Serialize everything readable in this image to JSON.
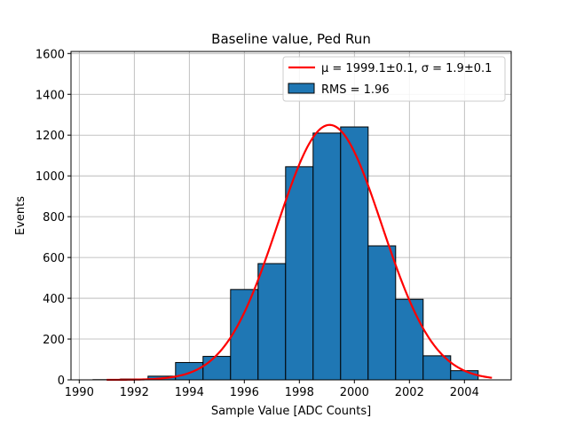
{
  "chart_data": {
    "type": "bar",
    "title": "Baseline value, Ped Run",
    "xlabel": "Sample Value [ADC Counts]",
    "ylabel": "Events",
    "xlim": [
      1989.7,
      2005.7
    ],
    "ylim": [
      0,
      1610
    ],
    "xticks": [
      1990,
      1992,
      1994,
      1996,
      1998,
      2000,
      2002,
      2004
    ],
    "yticks": [
      0,
      200,
      400,
      600,
      800,
      1000,
      1200,
      1400,
      1600
    ],
    "grid": true,
    "legend_position": "upper-right",
    "histogram": {
      "name": "RMS = 1.96",
      "color": "#1f77b4",
      "bins": [
        {
          "x0": 1990.5,
          "x1": 1991.5,
          "count": 1
        },
        {
          "x0": 1991.5,
          "x1": 1992.5,
          "count": 4
        },
        {
          "x0": 1992.5,
          "x1": 1993.5,
          "count": 18
        },
        {
          "x0": 1993.5,
          "x1": 1994.5,
          "count": 85
        },
        {
          "x0": 1994.5,
          "x1": 1995.5,
          "count": 115
        },
        {
          "x0": 1995.5,
          "x1": 1996.5,
          "count": 443
        },
        {
          "x0": 1996.5,
          "x1": 1997.5,
          "count": 570
        },
        {
          "x0": 1997.5,
          "x1": 1998.5,
          "count": 1045
        },
        {
          "x0": 1998.5,
          "x1": 1999.5,
          "count": 1210
        },
        {
          "x0": 1999.5,
          "x1": 2000.5,
          "count": 1240
        },
        {
          "x0": 2000.5,
          "x1": 2001.5,
          "count": 657
        },
        {
          "x0": 2001.5,
          "x1": 2002.5,
          "count": 395
        },
        {
          "x0": 2002.5,
          "x1": 2003.5,
          "count": 118
        },
        {
          "x0": 2003.5,
          "x1": 2004.5,
          "count": 45
        }
      ]
    },
    "fit": {
      "name": "μ = 1999.1±0.1, σ = 1.9±0.1",
      "color": "#ff0000",
      "type": "gaussian",
      "mu": 1999.1,
      "sigma": 1.9,
      "amplitude": 1250,
      "x_range": [
        1991,
        2005
      ]
    }
  }
}
